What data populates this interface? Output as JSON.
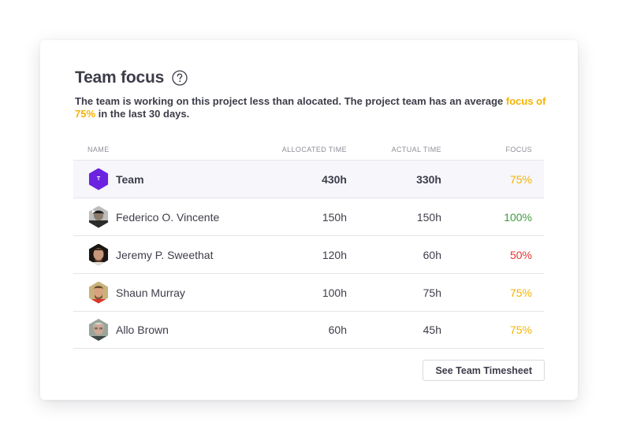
{
  "header": {
    "title": "Team focus",
    "help_icon": "question-circle-icon"
  },
  "description": {
    "text_before": "The team is working on this project less than alocated. The project team has an average ",
    "highlight": "focus of 75%",
    "text_after": " in the last 30 days.",
    "highlight_color": "#f5b301"
  },
  "table": {
    "columns": {
      "name": "NAME",
      "allocated": "ALLOCATED TIME",
      "actual": "ACTUAL TIME",
      "focus": "FOCUS"
    },
    "rows": [
      {
        "name": "Team",
        "avatar_letter": "T",
        "allocated": "430h",
        "actual": "330h",
        "focus": "75%",
        "focus_status": "warn"
      },
      {
        "name": "Federico O. Vincente",
        "allocated": "150h",
        "actual": "150h",
        "focus": "100%",
        "focus_status": "good"
      },
      {
        "name": "Jeremy P. Sweethat",
        "allocated": "120h",
        "actual": "60h",
        "focus": "50%",
        "focus_status": "bad"
      },
      {
        "name": "Shaun Murray",
        "allocated": "100h",
        "actual": "75h",
        "focus": "75%",
        "focus_status": "warn"
      },
      {
        "name": "Allo Brown",
        "allocated": "60h",
        "actual": "45h",
        "focus": "75%",
        "focus_status": "warn"
      }
    ]
  },
  "footer": {
    "button_label": "See Team Timesheet"
  },
  "colors": {
    "team_accent": "#6c23e0",
    "focus_good": "#3e9b3e",
    "focus_warn": "#f5b301",
    "focus_bad": "#e5322d"
  }
}
